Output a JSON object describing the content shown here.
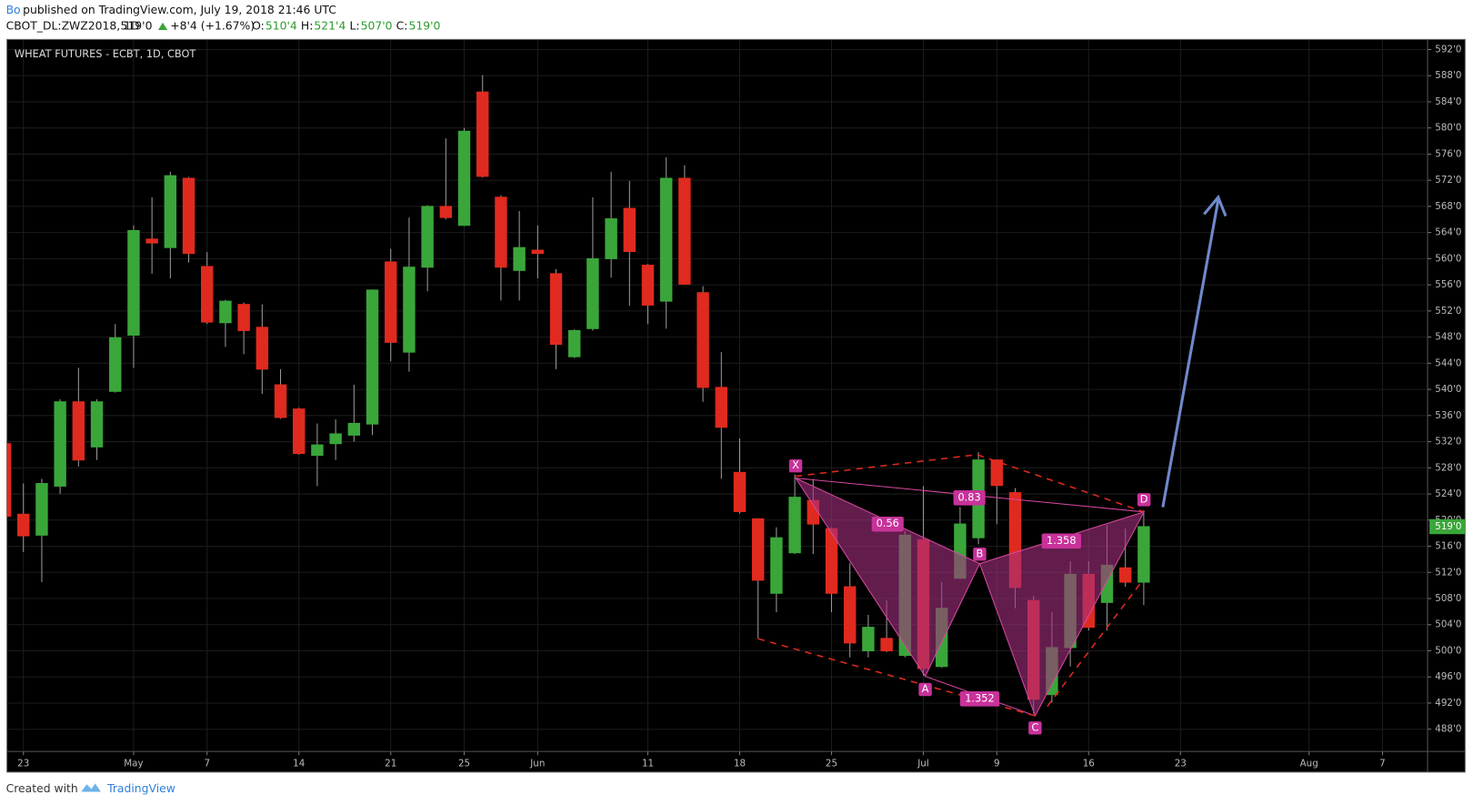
{
  "header": {
    "author": "Bo",
    "published": "published on TradingView.com, July 19, 2018 21:46 UTC",
    "symbol": "CBOT_DL:ZWZ2018, 1D",
    "last": "519'0",
    "change": "+8'4 (+1.67%)",
    "ohlc": [
      {
        "label": "O:",
        "value": "510'4"
      },
      {
        "label": "H:",
        "value": "521'4"
      },
      {
        "label": "L:",
        "value": "507'0"
      },
      {
        "label": "C:",
        "value": "519'0"
      }
    ]
  },
  "footer": {
    "created": "Created with",
    "brand": "TradingView"
  },
  "pattern": {
    "points": [
      "X",
      "A",
      "B",
      "C",
      "D"
    ],
    "ratios": [
      "0.56",
      "0.83",
      "1.352",
      "1.358"
    ]
  },
  "chart_data": {
    "type": "candlestick",
    "title": "WHEAT FUTURES - ECBT, 1D, CBOT",
    "categories": [
      null,
      "23",
      null,
      null,
      null,
      null,
      null,
      "May",
      null,
      null,
      null,
      "7",
      null,
      null,
      null,
      null,
      "14",
      null,
      null,
      null,
      null,
      "21",
      null,
      null,
      null,
      "25",
      null,
      null,
      null,
      "Jun",
      null,
      null,
      null,
      null,
      null,
      "11",
      null,
      null,
      null,
      null,
      "18",
      null,
      null,
      null,
      null,
      "25",
      null,
      null,
      null,
      null,
      "Jul",
      null,
      null,
      null,
      "9",
      null,
      null,
      null,
      null,
      "16",
      null,
      null,
      null,
      null,
      "23",
      null,
      null,
      null,
      null,
      null,
      null,
      "Aug",
      null,
      null,
      null,
      "7",
      null,
      null
    ],
    "open": [
      531.7,
      520.9,
      517.7,
      525.2,
      538.1,
      531.2,
      539.7,
      548.3,
      563,
      561.7,
      572.3,
      558.8,
      550.2,
      553,
      549.5,
      540.7,
      537,
      529.9,
      531.7,
      533,
      534.7,
      559.5,
      545.7,
      558.7,
      568,
      565.1,
      585.5,
      569.4,
      558.2,
      561.3,
      557.7,
      545,
      549.3,
      560,
      567.7,
      559,
      553.5,
      572.3,
      554.8,
      540.3,
      527.3,
      520.2,
      508.8,
      515,
      523,
      518.7,
      509.8,
      500,
      501.9,
      499.3,
      517,
      497.6,
      511.1,
      517.3,
      529.2,
      524.2,
      507.7,
      493.3,
      500.5,
      511.7,
      507.4,
      512.7,
      510.5,
      null,
      null,
      null,
      null,
      null,
      null,
      null,
      null,
      null,
      null,
      null,
      null,
      null,
      null,
      null
    ],
    "high": [
      532,
      525.6,
      526.3,
      538.5,
      543.3,
      538.5,
      550,
      565.1,
      569.4,
      573.3,
      572.5,
      561,
      553.7,
      553.3,
      553,
      543.1,
      537.2,
      534.8,
      535.4,
      540.7,
      555.3,
      561.5,
      566.3,
      568.2,
      578.4,
      580,
      588.1,
      569.7,
      567.3,
      565.1,
      558.4,
      549.2,
      569.4,
      573.3,
      571.9,
      559.2,
      575.5,
      574.3,
      555.8,
      545.7,
      532.5,
      520.3,
      518.9,
      527,
      526.3,
      518.9,
      513.4,
      505.5,
      507.7,
      518.4,
      525.2,
      510.5,
      522,
      530.4,
      529.3,
      524.9,
      508.4,
      505.9,
      513.7,
      513.7,
      519.2,
      518.7,
      521.5,
      null,
      null,
      null,
      null,
      null,
      null,
      null,
      null,
      null,
      null,
      null,
      null,
      null,
      null,
      null
    ],
    "low": [
      519,
      515.1,
      510.5,
      524,
      528.2,
      529.2,
      539.5,
      543.3,
      557.7,
      557,
      559.4,
      550,
      546.5,
      545.4,
      539.3,
      535.5,
      530,
      525.2,
      529.2,
      532,
      533,
      544.3,
      542.7,
      555,
      566,
      565,
      572.4,
      553.6,
      553.6,
      557,
      543.1,
      544.8,
      549,
      557.1,
      552.8,
      550,
      549.3,
      556,
      538.1,
      526.3,
      521,
      501.9,
      505.9,
      514.8,
      514.8,
      505.9,
      499,
      499,
      499.8,
      499,
      496.2,
      497.4,
      511,
      516.3,
      519.4,
      506.5,
      490.4,
      492.1,
      497.6,
      503.1,
      503.1,
      509.8,
      507,
      null,
      null,
      null,
      null,
      null,
      null,
      null,
      null,
      null,
      null,
      null,
      null,
      null,
      null,
      null
    ],
    "close": [
      520.6,
      517.6,
      525.6,
      538.1,
      529.2,
      538.1,
      547.9,
      564.3,
      562.4,
      572.7,
      560.8,
      550.3,
      553.5,
      549,
      543.1,
      535.7,
      530.2,
      531.5,
      533.2,
      534.8,
      555.2,
      547.2,
      558.7,
      568,
      566.3,
      579.5,
      572.6,
      558.7,
      561.7,
      560.8,
      546.9,
      549,
      560,
      566.1,
      561.1,
      552.9,
      572.3,
      556.1,
      540.3,
      534.2,
      521.3,
      510.8,
      517.3,
      523.5,
      519.4,
      508.8,
      501.2,
      503.6,
      500,
      517.7,
      497.3,
      506.5,
      519.4,
      529.2,
      525.3,
      509.7,
      492.6,
      500.5,
      511.7,
      503.6,
      513.1,
      510.5,
      519,
      null,
      null,
      null,
      null,
      null,
      null,
      null,
      null,
      null,
      null,
      null,
      null,
      null,
      null,
      null
    ],
    "up_color": "#3aa63a",
    "down_color": "#e02a1f",
    "wick_color": "#9a9a9a",
    "ylim": [
      484.6,
      593.4
    ],
    "yticks": [
      {
        "value": 488,
        "label": "488'0"
      },
      {
        "value": 492,
        "label": "492'0"
      },
      {
        "value": 496,
        "label": "496'0"
      },
      {
        "value": 500,
        "label": "500'0"
      },
      {
        "value": 504,
        "label": "504'0"
      },
      {
        "value": 508,
        "label": "508'0"
      },
      {
        "value": 512,
        "label": "512'0"
      },
      {
        "value": 516,
        "label": "516'0"
      },
      {
        "value": 520,
        "label": "520'0"
      },
      {
        "value": 524,
        "label": "524'0"
      },
      {
        "value": 528,
        "label": "528'0"
      },
      {
        "value": 532,
        "label": "532'0"
      },
      {
        "value": 536,
        "label": "536'0"
      },
      {
        "value": 540,
        "label": "540'0"
      },
      {
        "value": 544,
        "label": "544'0"
      },
      {
        "value": 548,
        "label": "548'0"
      },
      {
        "value": 552,
        "label": "552'0"
      },
      {
        "value": 556,
        "label": "556'0"
      },
      {
        "value": 560,
        "label": "560'0"
      },
      {
        "value": 564,
        "label": "564'0"
      },
      {
        "value": 568,
        "label": "568'0"
      },
      {
        "value": 572,
        "label": "572'0"
      },
      {
        "value": 576,
        "label": "576'0"
      },
      {
        "value": 580,
        "label": "580'0"
      },
      {
        "value": 584,
        "label": "584'0"
      },
      {
        "value": 588,
        "label": "588'0"
      },
      {
        "value": 592,
        "label": "592'0"
      }
    ],
    "last_price": {
      "value": 519,
      "label": "519'0"
    },
    "grid": true
  }
}
